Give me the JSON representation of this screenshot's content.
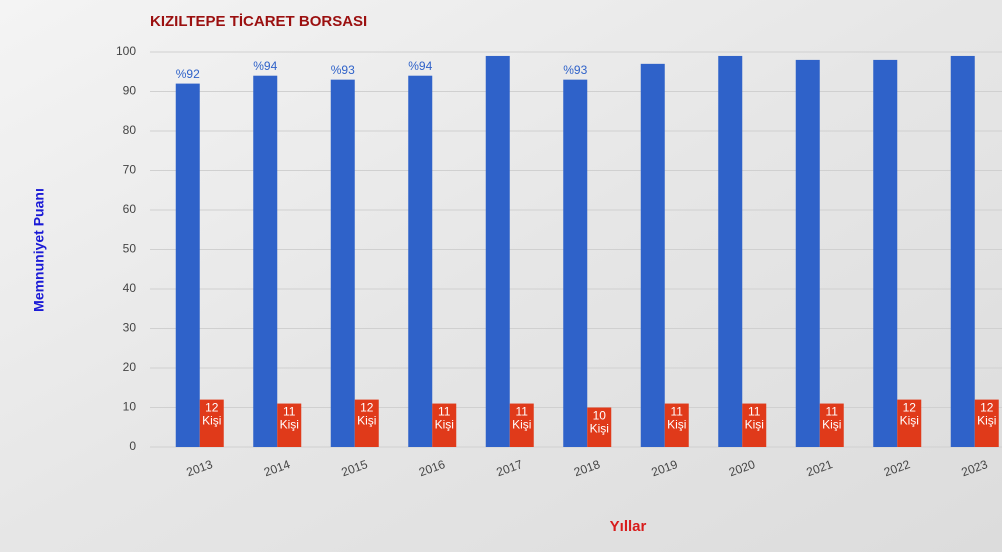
{
  "chart_data": {
    "type": "bar",
    "title": "KIZILTEPE TİCARET BORSASI",
    "x_label": "Yıllar",
    "y_label": "Memnuniyet Puanı",
    "categories": [
      "2013",
      "2014",
      "2015",
      "2016",
      "2017",
      "2018",
      "2019",
      "2020",
      "2021",
      "2022",
      "2023"
    ],
    "series": [
      {
        "color": "#2f62c9",
        "values": [
          92,
          94,
          93,
          94,
          99,
          93,
          97,
          99,
          98,
          98,
          99
        ],
        "value_labels": [
          "%92",
          "%94",
          "%93",
          "%94",
          null,
          "%93",
          null,
          null,
          null,
          null,
          null
        ]
      },
      {
        "color": "#e03a1a",
        "values": [
          12,
          11,
          12,
          11,
          11,
          10,
          11,
          11,
          11,
          12,
          12
        ],
        "value_labels": [
          "12 Kişi",
          "11 Kişi",
          "12 Kişi",
          "11 Kişi",
          "11 Kişi",
          "10 Kişi",
          "11 Kişi",
          "11 Kişi",
          "11 Kişi",
          "12 Kişi",
          "12 Kişi"
        ]
      }
    ],
    "ylim": [
      0,
      100
    ],
    "yticks": [
      0,
      10,
      20,
      30,
      40,
      50,
      60,
      70,
      80,
      90,
      100
    ],
    "grid": true
  }
}
